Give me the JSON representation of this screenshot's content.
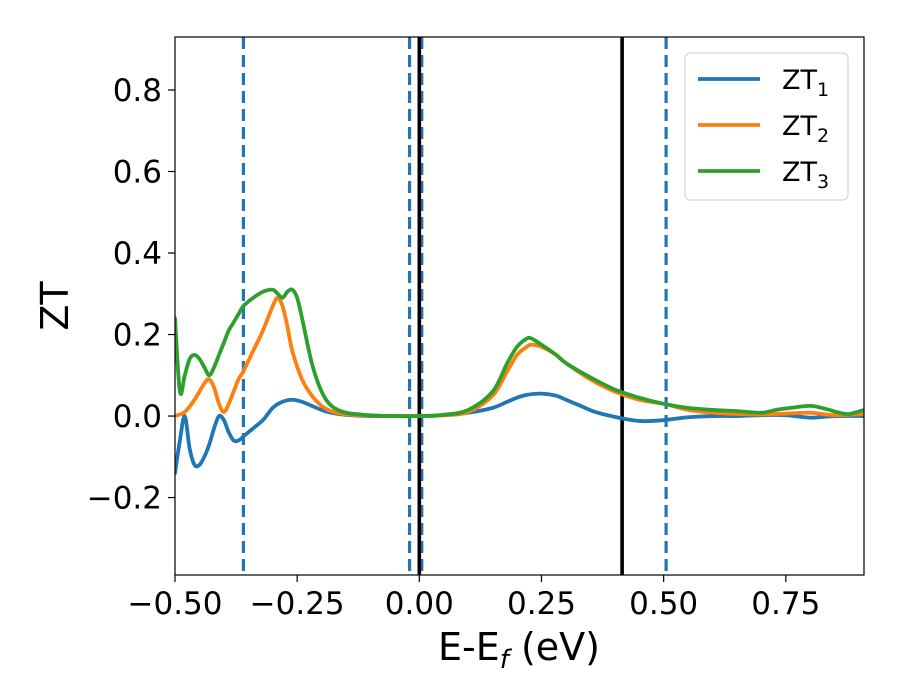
{
  "chart_data": {
    "type": "line",
    "xlabel": "E-E",
    "xlabel_sub": "f",
    "xlabel_unit": " (eV)",
    "ylabel": "ZT",
    "xlim": [
      -0.5,
      0.91
    ],
    "ylim": [
      -0.39,
      0.93
    ],
    "x_ticks": [
      -0.5,
      -0.25,
      0.0,
      0.25,
      0.5,
      0.75
    ],
    "x_tick_labels": [
      "−0.50",
      "−0.25",
      "0.00",
      "0.25",
      "0.50",
      "0.75"
    ],
    "y_ticks": [
      -0.2,
      0.0,
      0.2,
      0.4,
      0.6,
      0.8
    ],
    "y_tick_labels": [
      "−0.2",
      "0.0",
      "0.2",
      "0.4",
      "0.6",
      "0.8"
    ],
    "grid": false,
    "legend_position": "top-right",
    "vlines": [
      {
        "x": -0.36,
        "style": "dashed",
        "color": "#1f77b4"
      },
      {
        "x": -0.02,
        "style": "dashed",
        "color": "#1f77b4"
      },
      {
        "x": 0.005,
        "style": "dashed",
        "color": "#1f77b4"
      },
      {
        "x": 0.505,
        "style": "dashed",
        "color": "#1f77b4"
      },
      {
        "x": 0.0,
        "style": "solid",
        "color": "#000000"
      },
      {
        "x": 0.415,
        "style": "solid",
        "color": "#000000"
      }
    ],
    "series": [
      {
        "name": "ZT",
        "name_sub": "1",
        "color": "#1f77b4",
        "x": [
          -0.5,
          -0.49,
          -0.48,
          -0.47,
          -0.46,
          -0.45,
          -0.44,
          -0.43,
          -0.42,
          -0.41,
          -0.4,
          -0.39,
          -0.38,
          -0.37,
          -0.36,
          -0.35,
          -0.34,
          -0.32,
          -0.3,
          -0.28,
          -0.26,
          -0.24,
          -0.22,
          -0.2,
          -0.18,
          -0.15,
          -0.1,
          -0.05,
          0.0,
          0.05,
          0.1,
          0.15,
          0.18,
          0.2,
          0.22,
          0.25,
          0.28,
          0.3,
          0.33,
          0.36,
          0.4,
          0.45,
          0.5,
          0.55,
          0.6,
          0.65,
          0.7,
          0.75,
          0.8,
          0.85,
          0.91
        ],
        "y": [
          -0.14,
          -0.06,
          0.0,
          -0.08,
          -0.12,
          -0.12,
          -0.1,
          -0.07,
          -0.03,
          0.0,
          -0.01,
          -0.04,
          -0.06,
          -0.06,
          -0.05,
          -0.04,
          -0.03,
          -0.01,
          0.02,
          0.035,
          0.04,
          0.035,
          0.025,
          0.015,
          0.008,
          0.003,
          0.0,
          0.0,
          0.0,
          0.002,
          0.008,
          0.02,
          0.035,
          0.045,
          0.052,
          0.055,
          0.05,
          0.04,
          0.025,
          0.01,
          -0.002,
          -0.012,
          -0.01,
          -0.003,
          0.0,
          0.0,
          0.002,
          0.002,
          -0.004,
          0.0,
          0.0
        ]
      },
      {
        "name": "ZT",
        "name_sub": "2",
        "color": "#ff7f0e",
        "x": [
          -0.5,
          -0.48,
          -0.46,
          -0.44,
          -0.43,
          -0.42,
          -0.41,
          -0.4,
          -0.39,
          -0.38,
          -0.37,
          -0.36,
          -0.34,
          -0.32,
          -0.3,
          -0.29,
          -0.28,
          -0.27,
          -0.26,
          -0.24,
          -0.22,
          -0.2,
          -0.18,
          -0.15,
          -0.1,
          -0.05,
          0.0,
          0.05,
          0.1,
          0.15,
          0.18,
          0.2,
          0.22,
          0.23,
          0.25,
          0.28,
          0.3,
          0.35,
          0.4,
          0.45,
          0.5,
          0.55,
          0.6,
          0.65,
          0.7,
          0.75,
          0.8,
          0.85,
          0.91
        ],
        "y": [
          0.0,
          0.01,
          0.04,
          0.08,
          0.09,
          0.07,
          0.03,
          0.01,
          0.03,
          0.06,
          0.09,
          0.11,
          0.16,
          0.21,
          0.27,
          0.29,
          0.27,
          0.22,
          0.16,
          0.09,
          0.05,
          0.025,
          0.012,
          0.004,
          0.001,
          0.0,
          0.0,
          0.002,
          0.01,
          0.05,
          0.11,
          0.15,
          0.17,
          0.175,
          0.17,
          0.15,
          0.13,
          0.09,
          0.06,
          0.04,
          0.03,
          0.015,
          0.008,
          0.005,
          0.004,
          0.006,
          0.008,
          0.002,
          0.005
        ]
      },
      {
        "name": "ZT",
        "name_sub": "3",
        "color": "#2ca02c",
        "x": [
          -0.5,
          -0.49,
          -0.48,
          -0.47,
          -0.46,
          -0.45,
          -0.44,
          -0.43,
          -0.42,
          -0.41,
          -0.4,
          -0.39,
          -0.38,
          -0.37,
          -0.36,
          -0.34,
          -0.32,
          -0.3,
          -0.29,
          -0.28,
          -0.27,
          -0.26,
          -0.25,
          -0.24,
          -0.22,
          -0.2,
          -0.18,
          -0.15,
          -0.1,
          -0.05,
          0.0,
          0.05,
          0.1,
          0.15,
          0.18,
          0.2,
          0.22,
          0.23,
          0.25,
          0.28,
          0.3,
          0.35,
          0.4,
          0.45,
          0.5,
          0.55,
          0.6,
          0.65,
          0.7,
          0.73,
          0.76,
          0.8,
          0.83,
          0.86,
          0.88,
          0.91
        ],
        "y": [
          0.24,
          0.06,
          0.1,
          0.14,
          0.15,
          0.14,
          0.12,
          0.1,
          0.12,
          0.15,
          0.18,
          0.21,
          0.23,
          0.25,
          0.27,
          0.29,
          0.305,
          0.31,
          0.3,
          0.29,
          0.305,
          0.31,
          0.29,
          0.24,
          0.13,
          0.06,
          0.025,
          0.008,
          0.002,
          0.0,
          0.0,
          0.003,
          0.015,
          0.06,
          0.13,
          0.17,
          0.19,
          0.19,
          0.175,
          0.15,
          0.13,
          0.095,
          0.065,
          0.045,
          0.03,
          0.02,
          0.015,
          0.012,
          0.008,
          0.015,
          0.02,
          0.025,
          0.018,
          0.008,
          0.005,
          0.015
        ]
      }
    ]
  }
}
